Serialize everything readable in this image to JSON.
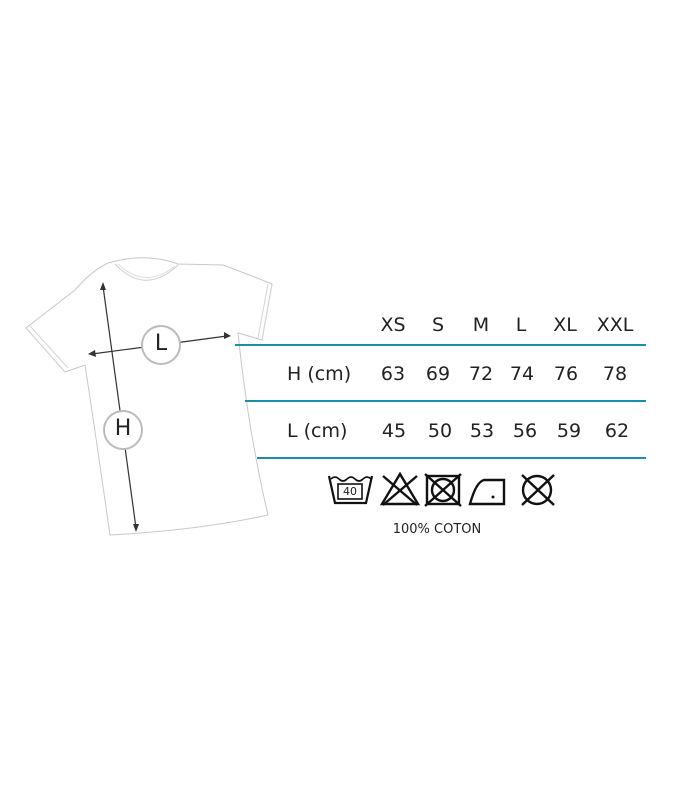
{
  "diagram": {
    "measure_labels": {
      "width": "L",
      "height": "H"
    }
  },
  "size_table": {
    "sizes": [
      "XS",
      "S",
      "M",
      "L",
      "XL",
      "XXL"
    ],
    "rows": [
      {
        "label": "H (cm)",
        "values": [
          "63",
          "69",
          "72",
          "74",
          "76",
          "78"
        ]
      },
      {
        "label": "L (cm)",
        "values": [
          "45",
          "50",
          "53",
          "56",
          "59",
          "62"
        ]
      }
    ]
  },
  "care": {
    "symbols": [
      "wash-40-icon",
      "no-bleach-icon",
      "no-tumble-dry-icon",
      "iron-low-icon",
      "no-dry-clean-icon"
    ],
    "wash_temperature": "40",
    "fabric": "100% COTON"
  },
  "colors": {
    "accent": "#1b8fa8"
  }
}
